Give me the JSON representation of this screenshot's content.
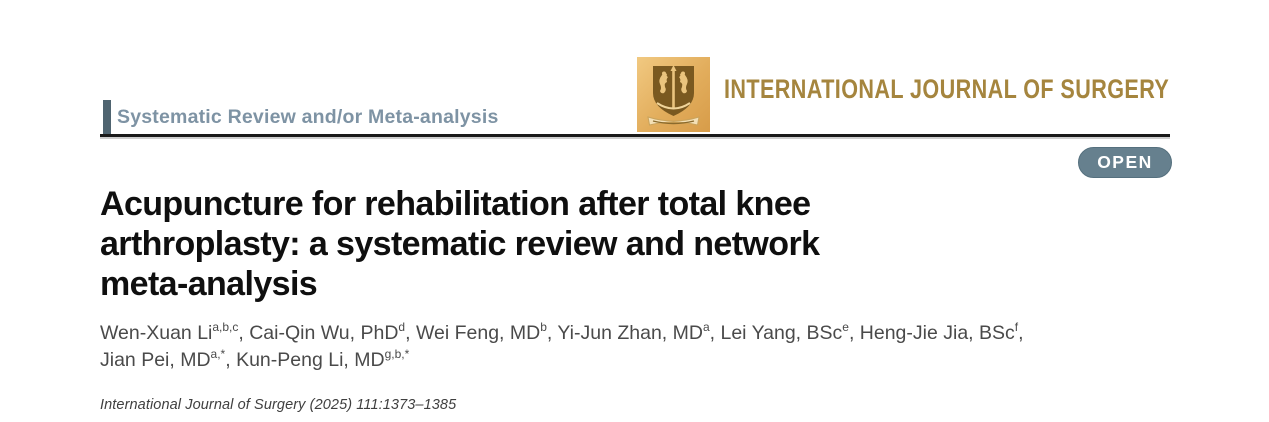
{
  "header": {
    "section_label": "Systematic Review and/or Meta-analysis",
    "journal_name": "INTERNATIONAL JOURNAL OF SURGERY",
    "open_badge_label": "OPEN",
    "colors": {
      "section_text": "#7e93a4",
      "section_bar": "#4f6470",
      "journal_gold": "#a5853e",
      "badge_fill": "#66808e",
      "rule_black": "#1a1a1a",
      "logo_background": "#e2ad5c",
      "logo_crest": "#7a5920"
    }
  },
  "article": {
    "title_lines": [
      "Acupuncture for rehabilitation after total knee",
      "arthroplasty: a systematic review and network",
      "meta-analysis"
    ],
    "author_segments": [
      {
        "t": "Wen-Xuan Li"
      },
      {
        "s": "a,b,c"
      },
      {
        "t": ", Cai-Qin Wu, PhD"
      },
      {
        "s": "d"
      },
      {
        "t": ", Wei Feng, MD"
      },
      {
        "s": "b"
      },
      {
        "t": ", Yi-Jun Zhan, MD"
      },
      {
        "s": "a"
      },
      {
        "t": ", Lei Yang, BSc"
      },
      {
        "s": "e"
      },
      {
        "t": ", Heng-Jie Jia, BSc"
      },
      {
        "s": "f"
      },
      {
        "t": ","
      },
      {
        "br": true
      },
      {
        "t": "Jian Pei, MD"
      },
      {
        "s": "a,*"
      },
      {
        "t": ", Kun-Peng Li, MD"
      },
      {
        "s": "g,b,*"
      }
    ],
    "citation": "International Journal of Surgery (2025) 111:1373–1385"
  }
}
